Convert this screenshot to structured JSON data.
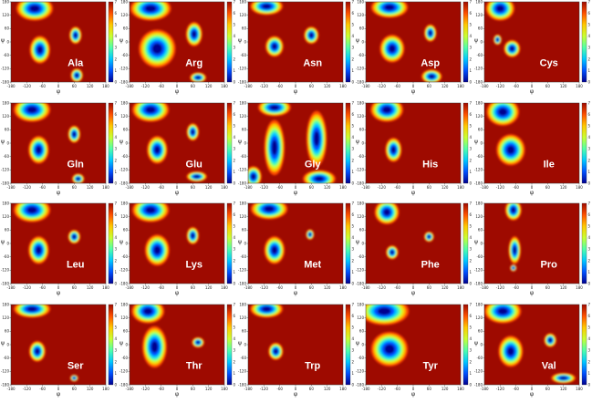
{
  "chart_data": {
    "type": "heatmap",
    "description_units": "phi (x) and psi (y) dihedral angles in degrees",
    "xlabel": "φ",
    "ylabel": "ψ",
    "xlim": [
      -180,
      180
    ],
    "ylim": [
      -180,
      180
    ],
    "xticks": [
      "-180",
      "-120",
      "-60",
      "0",
      "60",
      "120",
      "180"
    ],
    "yticks": [
      "180",
      "120",
      "60",
      "0",
      "-60",
      "-120",
      "-180"
    ],
    "background_color": "#9e0a00",
    "colormap": [
      "#00008f",
      "#0050ff",
      "#00c8ff",
      "#50ffaa",
      "#c8ff32",
      "#ffc800",
      "#ff5000",
      "#9e0a00"
    ],
    "colorbar_ticks": [
      "0",
      "1",
      "2",
      "3",
      "4",
      "5",
      "6",
      "7"
    ],
    "panels": [
      {
        "residue": "Ala",
        "blobs": [
          {
            "x": -90,
            "y": 150,
            "rx": 45,
            "ry": 35
          },
          {
            "x": -70,
            "y": -35,
            "rx": 25,
            "ry": 40
          },
          {
            "x": 65,
            "y": 30,
            "rx": 15,
            "ry": 25
          },
          {
            "x": 70,
            "y": -150,
            "rx": 15,
            "ry": 20
          }
        ]
      },
      {
        "residue": "Arg",
        "blobs": [
          {
            "x": -100,
            "y": 150,
            "rx": 50,
            "ry": 35
          },
          {
            "x": -75,
            "y": -30,
            "rx": 45,
            "ry": 55
          },
          {
            "x": 65,
            "y": 35,
            "rx": 20,
            "ry": 35
          },
          {
            "x": 80,
            "y": -160,
            "rx": 20,
            "ry": 15
          }
        ]
      },
      {
        "residue": "Asn",
        "blobs": [
          {
            "x": -110,
            "y": 160,
            "rx": 40,
            "ry": 25
          },
          {
            "x": -80,
            "y": -20,
            "rx": 22,
            "ry": 30
          },
          {
            "x": 60,
            "y": 30,
            "rx": 18,
            "ry": 25
          }
        ]
      },
      {
        "residue": "Asp",
        "blobs": [
          {
            "x": -90,
            "y": 155,
            "rx": 45,
            "ry": 30
          },
          {
            "x": -80,
            "y": -30,
            "rx": 30,
            "ry": 40
          },
          {
            "x": 65,
            "y": 40,
            "rx": 15,
            "ry": 25
          },
          {
            "x": 70,
            "y": -155,
            "rx": 25,
            "ry": 20
          }
        ]
      },
      {
        "residue": "Cys",
        "blobs": [
          {
            "x": -120,
            "y": 150,
            "rx": 35,
            "ry": 35
          },
          {
            "x": -75,
            "y": -30,
            "rx": 20,
            "ry": 25
          },
          {
            "x": -130,
            "y": 10,
            "rx": 10,
            "ry": 15
          }
        ]
      },
      {
        "residue": "Gln",
        "blobs": [
          {
            "x": -100,
            "y": 150,
            "rx": 45,
            "ry": 35
          },
          {
            "x": -75,
            "y": -30,
            "rx": 25,
            "ry": 40
          },
          {
            "x": 60,
            "y": 40,
            "rx": 15,
            "ry": 25
          },
          {
            "x": 75,
            "y": -160,
            "rx": 15,
            "ry": 15
          }
        ]
      },
      {
        "residue": "Glu",
        "blobs": [
          {
            "x": -100,
            "y": 150,
            "rx": 45,
            "ry": 35
          },
          {
            "x": -75,
            "y": -30,
            "rx": 25,
            "ry": 40
          },
          {
            "x": 60,
            "y": 50,
            "rx": 15,
            "ry": 25
          },
          {
            "x": 75,
            "y": -150,
            "rx": 25,
            "ry": 15
          }
        ]
      },
      {
        "residue": "Gly",
        "blobs": [
          {
            "x": -80,
            "y": 160,
            "rx": 40,
            "ry": 25
          },
          {
            "x": -80,
            "y": -20,
            "rx": 25,
            "ry": 80
          },
          {
            "x": 80,
            "y": 20,
            "rx": 25,
            "ry": 80
          },
          {
            "x": 90,
            "y": -160,
            "rx": 40,
            "ry": 25
          },
          {
            "x": -160,
            "y": -150,
            "rx": 20,
            "ry": 30
          }
        ]
      },
      {
        "residue": "His",
        "blobs": [
          {
            "x": -100,
            "y": 150,
            "rx": 40,
            "ry": 35
          },
          {
            "x": -75,
            "y": -30,
            "rx": 20,
            "ry": 35
          }
        ]
      },
      {
        "residue": "Ile",
        "blobs": [
          {
            "x": -110,
            "y": 140,
            "rx": 40,
            "ry": 40
          },
          {
            "x": -80,
            "y": -30,
            "rx": 35,
            "ry": 45
          }
        ]
      },
      {
        "residue": "Leu",
        "blobs": [
          {
            "x": -100,
            "y": 150,
            "rx": 45,
            "ry": 35
          },
          {
            "x": -75,
            "y": -30,
            "rx": 25,
            "ry": 40
          },
          {
            "x": 60,
            "y": 30,
            "rx": 15,
            "ry": 20
          }
        ]
      },
      {
        "residue": "Lys",
        "blobs": [
          {
            "x": -100,
            "y": 150,
            "rx": 45,
            "ry": 35
          },
          {
            "x": -75,
            "y": -30,
            "rx": 30,
            "ry": 45
          },
          {
            "x": 60,
            "y": 35,
            "rx": 15,
            "ry": 25
          }
        ]
      },
      {
        "residue": "Met",
        "blobs": [
          {
            "x": -100,
            "y": 155,
            "rx": 45,
            "ry": 30
          },
          {
            "x": -80,
            "y": -30,
            "rx": 25,
            "ry": 40
          },
          {
            "x": 55,
            "y": 40,
            "rx": 10,
            "ry": 15
          }
        ]
      },
      {
        "residue": "Phe",
        "blobs": [
          {
            "x": -100,
            "y": 140,
            "rx": 30,
            "ry": 35
          },
          {
            "x": -80,
            "y": -40,
            "rx": 15,
            "ry": 20
          },
          {
            "x": 60,
            "y": 30,
            "rx": 12,
            "ry": 15
          }
        ]
      },
      {
        "residue": "Pro",
        "blobs": [
          {
            "x": -70,
            "y": 150,
            "rx": 20,
            "ry": 30
          },
          {
            "x": -65,
            "y": -30,
            "rx": 15,
            "ry": 40
          },
          {
            "x": -70,
            "y": -110,
            "rx": 8,
            "ry": 10
          }
        ]
      },
      {
        "residue": "Ser",
        "blobs": [
          {
            "x": -100,
            "y": 160,
            "rx": 45,
            "ry": 25
          },
          {
            "x": -80,
            "y": -30,
            "rx": 20,
            "ry": 30
          },
          {
            "x": 60,
            "y": -150,
            "rx": 10,
            "ry": 10
          }
        ]
      },
      {
        "residue": "Thr",
        "blobs": [
          {
            "x": -110,
            "y": 150,
            "rx": 40,
            "ry": 35
          },
          {
            "x": -85,
            "y": -10,
            "rx": 30,
            "ry": 60
          },
          {
            "x": 80,
            "y": 10,
            "rx": 15,
            "ry": 15
          }
        ]
      },
      {
        "residue": "Trp",
        "blobs": [
          {
            "x": -110,
            "y": 160,
            "rx": 40,
            "ry": 25
          },
          {
            "x": -75,
            "y": -30,
            "rx": 18,
            "ry": 25
          }
        ]
      },
      {
        "residue": "Tyr",
        "blobs": [
          {
            "x": -110,
            "y": 150,
            "rx": 60,
            "ry": 40
          },
          {
            "x": -90,
            "y": -20,
            "rx": 45,
            "ry": 50
          }
        ]
      },
      {
        "residue": "Val",
        "blobs": [
          {
            "x": -110,
            "y": 150,
            "rx": 45,
            "ry": 35
          },
          {
            "x": -80,
            "y": -30,
            "rx": 30,
            "ry": 45
          },
          {
            "x": 70,
            "y": 20,
            "rx": 15,
            "ry": 20
          },
          {
            "x": 120,
            "y": -150,
            "rx": 30,
            "ry": 15
          }
        ]
      }
    ]
  }
}
